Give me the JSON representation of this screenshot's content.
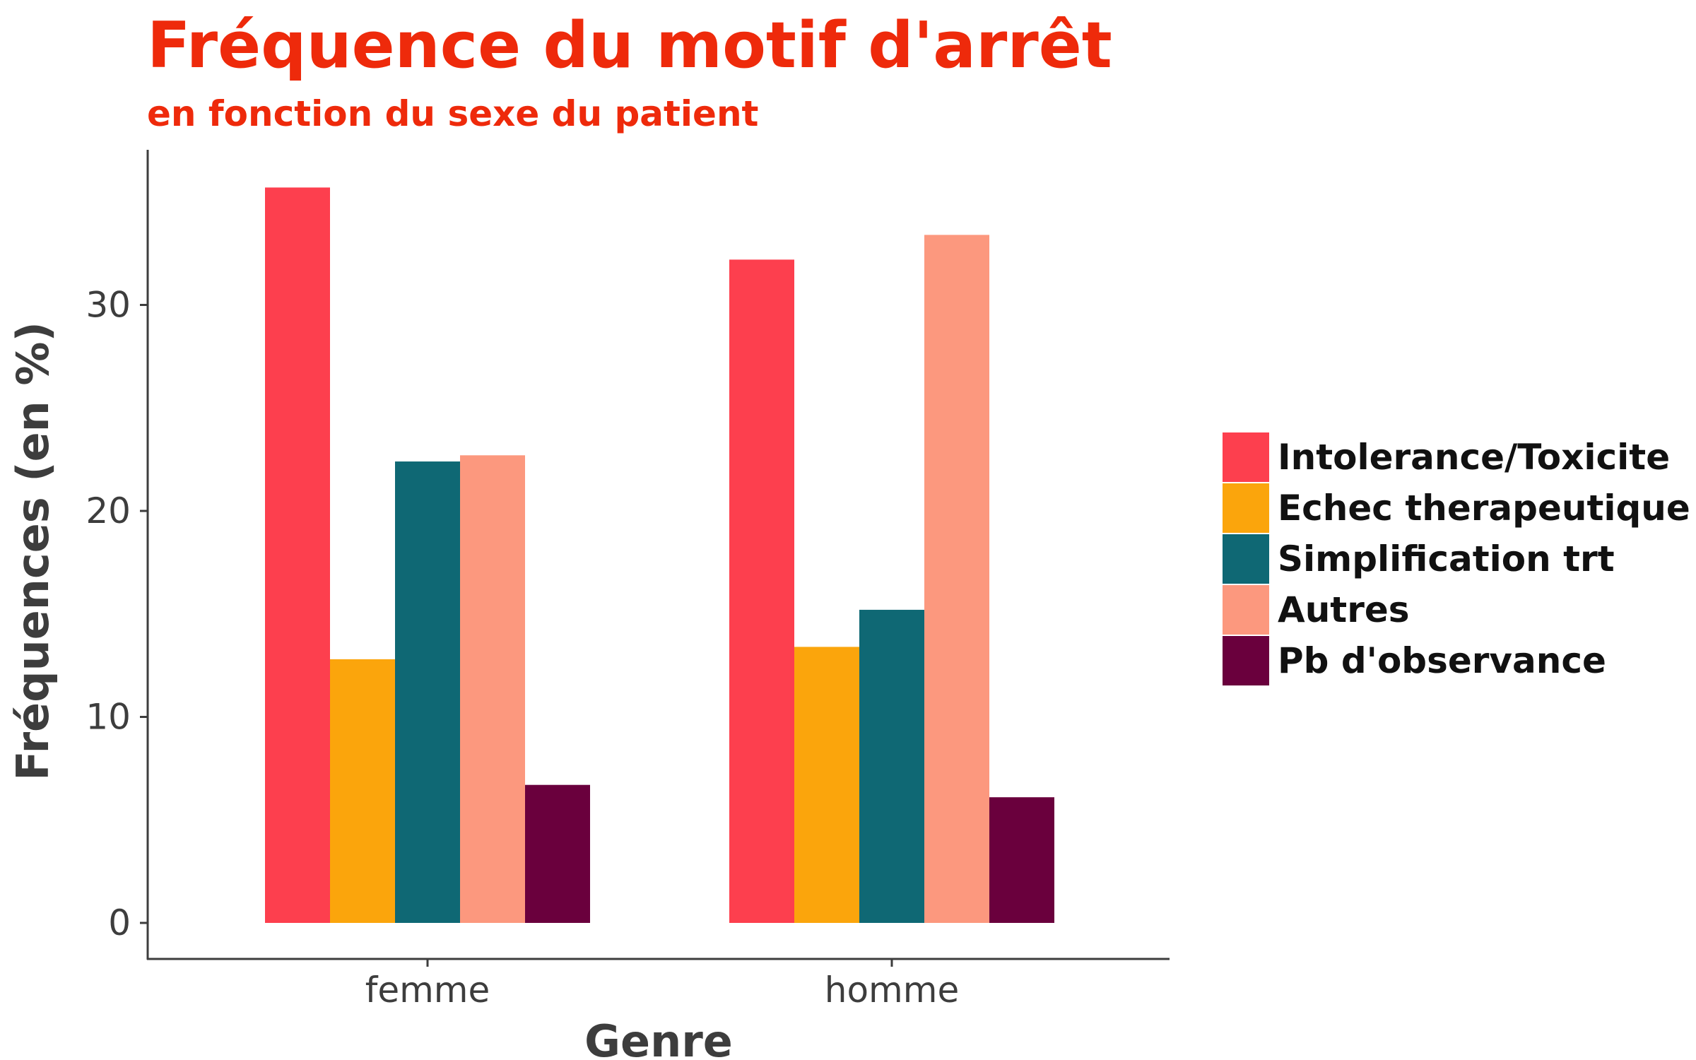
{
  "chart_data": {
    "type": "bar",
    "title": "Fréquence du motif d'arrêt",
    "subtitle": "en fonction du sexe du patient",
    "xlabel": "Genre",
    "ylabel": "Fréquences (en %)",
    "categories": [
      "femme",
      "homme"
    ],
    "ylim": [
      0,
      37
    ],
    "yticks": [
      0,
      10,
      20,
      30
    ],
    "grid": false,
    "legend_position": "right",
    "series": [
      {
        "name": "Intolerance/Toxicite",
        "color": "#fd3f4e",
        "values": [
          35.7,
          32.2
        ]
      },
      {
        "name": "Echec therapeutique",
        "color": "#fba50c",
        "values": [
          12.8,
          13.4
        ]
      },
      {
        "name": "Simplification trt",
        "color": "#0f6874",
        "values": [
          22.4,
          15.2
        ]
      },
      {
        "name": "Autres",
        "color": "#fc987e",
        "values": [
          22.7,
          33.4
        ]
      },
      {
        "name": "Pb d'observance",
        "color": "#6a003d",
        "values": [
          6.7,
          6.1
        ]
      }
    ]
  }
}
